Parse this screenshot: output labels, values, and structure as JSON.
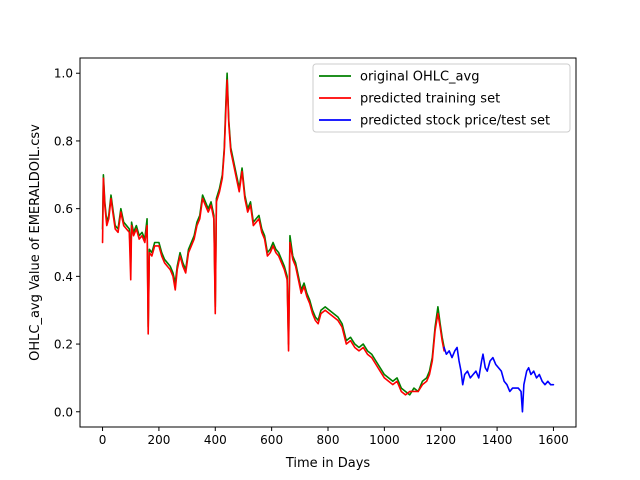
{
  "chart_data": {
    "type": "line",
    "title": "",
    "xlabel": "Time in Days",
    "ylabel": "OHLC_avg Value of EMERALDOIL.csv",
    "xlim": [
      -80,
      1680
    ],
    "ylim": [
      -0.045,
      1.045
    ],
    "xticks": [
      0,
      200,
      400,
      600,
      800,
      1000,
      1200,
      1400,
      1600
    ],
    "xtick_labels": [
      "0",
      "200",
      "400",
      "600",
      "800",
      "1000",
      "1200",
      "1400",
      "1600"
    ],
    "yticks": [
      0.0,
      0.2,
      0.4,
      0.6,
      0.8,
      1.0
    ],
    "ytick_labels": [
      "0.0",
      "0.2",
      "0.4",
      "0.6",
      "0.8",
      "1.0"
    ],
    "grid": false,
    "legend_position": "top-right",
    "series": [
      {
        "name": "original OHLC_avg",
        "color": "#008000",
        "points": [
          [
            0,
            0.54
          ],
          [
            3,
            0.7
          ],
          [
            8,
            0.62
          ],
          [
            15,
            0.56
          ],
          [
            22,
            0.58
          ],
          [
            30,
            0.64
          ],
          [
            38,
            0.59
          ],
          [
            45,
            0.55
          ],
          [
            55,
            0.54
          ],
          [
            65,
            0.6
          ],
          [
            75,
            0.56
          ],
          [
            85,
            0.55
          ],
          [
            95,
            0.54
          ],
          [
            100,
            0.44
          ],
          [
            103,
            0.56
          ],
          [
            110,
            0.53
          ],
          [
            120,
            0.55
          ],
          [
            130,
            0.52
          ],
          [
            140,
            0.53
          ],
          [
            150,
            0.51
          ],
          [
            158,
            0.57
          ],
          [
            162,
            0.25
          ],
          [
            166,
            0.48
          ],
          [
            175,
            0.47
          ],
          [
            185,
            0.5
          ],
          [
            200,
            0.5
          ],
          [
            210,
            0.47
          ],
          [
            220,
            0.45
          ],
          [
            230,
            0.44
          ],
          [
            240,
            0.43
          ],
          [
            250,
            0.41
          ],
          [
            258,
            0.38
          ],
          [
            265,
            0.43
          ],
          [
            275,
            0.47
          ],
          [
            285,
            0.44
          ],
          [
            295,
            0.42
          ],
          [
            305,
            0.48
          ],
          [
            315,
            0.5
          ],
          [
            325,
            0.52
          ],
          [
            335,
            0.56
          ],
          [
            345,
            0.58
          ],
          [
            355,
            0.64
          ],
          [
            365,
            0.62
          ],
          [
            375,
            0.6
          ],
          [
            385,
            0.62
          ],
          [
            395,
            0.58
          ],
          [
            400,
            0.31
          ],
          [
            404,
            0.63
          ],
          [
            415,
            0.66
          ],
          [
            425,
            0.7
          ],
          [
            432,
            0.78
          ],
          [
            438,
            0.92
          ],
          [
            442,
            1.0
          ],
          [
            448,
            0.86
          ],
          [
            455,
            0.78
          ],
          [
            465,
            0.74
          ],
          [
            475,
            0.7
          ],
          [
            485,
            0.66
          ],
          [
            495,
            0.72
          ],
          [
            505,
            0.64
          ],
          [
            515,
            0.6
          ],
          [
            525,
            0.62
          ],
          [
            535,
            0.56
          ],
          [
            545,
            0.57
          ],
          [
            555,
            0.58
          ],
          [
            565,
            0.54
          ],
          [
            575,
            0.52
          ],
          [
            585,
            0.47
          ],
          [
            595,
            0.48
          ],
          [
            605,
            0.5
          ],
          [
            615,
            0.48
          ],
          [
            625,
            0.47
          ],
          [
            635,
            0.45
          ],
          [
            645,
            0.43
          ],
          [
            655,
            0.4
          ],
          [
            660,
            0.2
          ],
          [
            665,
            0.52
          ],
          [
            675,
            0.46
          ],
          [
            685,
            0.44
          ],
          [
            695,
            0.4
          ],
          [
            705,
            0.36
          ],
          [
            715,
            0.38
          ],
          [
            725,
            0.35
          ],
          [
            735,
            0.33
          ],
          [
            745,
            0.3
          ],
          [
            755,
            0.28
          ],
          [
            765,
            0.27
          ],
          [
            775,
            0.3
          ],
          [
            790,
            0.31
          ],
          [
            805,
            0.3
          ],
          [
            820,
            0.29
          ],
          [
            835,
            0.28
          ],
          [
            850,
            0.26
          ],
          [
            865,
            0.21
          ],
          [
            880,
            0.22
          ],
          [
            895,
            0.2
          ],
          [
            910,
            0.19
          ],
          [
            925,
            0.2
          ],
          [
            940,
            0.18
          ],
          [
            955,
            0.17
          ],
          [
            970,
            0.15
          ],
          [
            985,
            0.13
          ],
          [
            1000,
            0.11
          ],
          [
            1015,
            0.1
          ],
          [
            1030,
            0.09
          ],
          [
            1045,
            0.1
          ],
          [
            1060,
            0.07
          ],
          [
            1075,
            0.06
          ],
          [
            1090,
            0.05
          ],
          [
            1105,
            0.07
          ],
          [
            1120,
            0.06
          ],
          [
            1135,
            0.09
          ],
          [
            1150,
            0.1
          ],
          [
            1160,
            0.12
          ],
          [
            1170,
            0.16
          ],
          [
            1180,
            0.25
          ],
          [
            1190,
            0.31
          ],
          [
            1198,
            0.26
          ],
          [
            1205,
            0.22
          ],
          [
            1212,
            0.19
          ]
        ]
      },
      {
        "name": "predicted training set",
        "color": "#ff0000",
        "points": [
          [
            0,
            0.5
          ],
          [
            3,
            0.69
          ],
          [
            8,
            0.61
          ],
          [
            15,
            0.55
          ],
          [
            22,
            0.57
          ],
          [
            30,
            0.63
          ],
          [
            38,
            0.58
          ],
          [
            45,
            0.54
          ],
          [
            55,
            0.53
          ],
          [
            65,
            0.59
          ],
          [
            75,
            0.55
          ],
          [
            85,
            0.54
          ],
          [
            95,
            0.53
          ],
          [
            100,
            0.39
          ],
          [
            103,
            0.55
          ],
          [
            110,
            0.52
          ],
          [
            120,
            0.54
          ],
          [
            130,
            0.51
          ],
          [
            140,
            0.52
          ],
          [
            150,
            0.5
          ],
          [
            158,
            0.55
          ],
          [
            162,
            0.23
          ],
          [
            166,
            0.47
          ],
          [
            175,
            0.46
          ],
          [
            185,
            0.49
          ],
          [
            200,
            0.49
          ],
          [
            210,
            0.46
          ],
          [
            220,
            0.44
          ],
          [
            230,
            0.43
          ],
          [
            240,
            0.42
          ],
          [
            250,
            0.4
          ],
          [
            258,
            0.36
          ],
          [
            265,
            0.42
          ],
          [
            275,
            0.46
          ],
          [
            285,
            0.43
          ],
          [
            295,
            0.41
          ],
          [
            305,
            0.47
          ],
          [
            315,
            0.49
          ],
          [
            325,
            0.51
          ],
          [
            335,
            0.55
          ],
          [
            345,
            0.57
          ],
          [
            355,
            0.63
          ],
          [
            365,
            0.61
          ],
          [
            375,
            0.59
          ],
          [
            385,
            0.61
          ],
          [
            395,
            0.57
          ],
          [
            400,
            0.29
          ],
          [
            404,
            0.62
          ],
          [
            415,
            0.65
          ],
          [
            425,
            0.69
          ],
          [
            432,
            0.77
          ],
          [
            438,
            0.9
          ],
          [
            442,
            0.98
          ],
          [
            448,
            0.85
          ],
          [
            455,
            0.77
          ],
          [
            465,
            0.73
          ],
          [
            475,
            0.69
          ],
          [
            485,
            0.65
          ],
          [
            495,
            0.71
          ],
          [
            505,
            0.63
          ],
          [
            515,
            0.59
          ],
          [
            525,
            0.61
          ],
          [
            535,
            0.55
          ],
          [
            545,
            0.56
          ],
          [
            555,
            0.57
          ],
          [
            565,
            0.53
          ],
          [
            575,
            0.51
          ],
          [
            585,
            0.46
          ],
          [
            595,
            0.47
          ],
          [
            605,
            0.49
          ],
          [
            615,
            0.47
          ],
          [
            625,
            0.46
          ],
          [
            635,
            0.44
          ],
          [
            645,
            0.42
          ],
          [
            655,
            0.39
          ],
          [
            660,
            0.18
          ],
          [
            665,
            0.5
          ],
          [
            675,
            0.45
          ],
          [
            685,
            0.43
          ],
          [
            695,
            0.39
          ],
          [
            705,
            0.35
          ],
          [
            715,
            0.37
          ],
          [
            725,
            0.34
          ],
          [
            735,
            0.32
          ],
          [
            745,
            0.29
          ],
          [
            755,
            0.27
          ],
          [
            765,
            0.26
          ],
          [
            775,
            0.29
          ],
          [
            790,
            0.3
          ],
          [
            805,
            0.29
          ],
          [
            820,
            0.28
          ],
          [
            835,
            0.27
          ],
          [
            850,
            0.25
          ],
          [
            865,
            0.2
          ],
          [
            880,
            0.21
          ],
          [
            895,
            0.19
          ],
          [
            910,
            0.18
          ],
          [
            925,
            0.19
          ],
          [
            940,
            0.17
          ],
          [
            955,
            0.16
          ],
          [
            970,
            0.14
          ],
          [
            985,
            0.12
          ],
          [
            1000,
            0.1
          ],
          [
            1015,
            0.09
          ],
          [
            1030,
            0.08
          ],
          [
            1045,
            0.09
          ],
          [
            1060,
            0.06
          ],
          [
            1075,
            0.05
          ],
          [
            1090,
            0.06
          ],
          [
            1105,
            0.06
          ],
          [
            1120,
            0.06
          ],
          [
            1135,
            0.08
          ],
          [
            1150,
            0.09
          ],
          [
            1160,
            0.11
          ],
          [
            1170,
            0.15
          ],
          [
            1180,
            0.24
          ],
          [
            1190,
            0.29
          ],
          [
            1198,
            0.25
          ],
          [
            1205,
            0.21
          ],
          [
            1212,
            0.18
          ]
        ]
      },
      {
        "name": "predicted stock price/test set",
        "color": "#0000ff",
        "points": [
          [
            1212,
            0.19
          ],
          [
            1220,
            0.17
          ],
          [
            1230,
            0.18
          ],
          [
            1240,
            0.16
          ],
          [
            1250,
            0.18
          ],
          [
            1258,
            0.19
          ],
          [
            1265,
            0.15
          ],
          [
            1272,
            0.12
          ],
          [
            1278,
            0.08
          ],
          [
            1285,
            0.11
          ],
          [
            1295,
            0.12
          ],
          [
            1305,
            0.1
          ],
          [
            1315,
            0.11
          ],
          [
            1325,
            0.12
          ],
          [
            1335,
            0.1
          ],
          [
            1345,
            0.15
          ],
          [
            1350,
            0.17
          ],
          [
            1358,
            0.13
          ],
          [
            1365,
            0.12
          ],
          [
            1375,
            0.15
          ],
          [
            1385,
            0.16
          ],
          [
            1395,
            0.14
          ],
          [
            1405,
            0.13
          ],
          [
            1415,
            0.12
          ],
          [
            1425,
            0.09
          ],
          [
            1435,
            0.08
          ],
          [
            1445,
            0.06
          ],
          [
            1455,
            0.07
          ],
          [
            1465,
            0.07
          ],
          [
            1475,
            0.07
          ],
          [
            1485,
            0.06
          ],
          [
            1490,
            0.0
          ],
          [
            1495,
            0.08
          ],
          [
            1505,
            0.12
          ],
          [
            1512,
            0.13
          ],
          [
            1520,
            0.11
          ],
          [
            1530,
            0.12
          ],
          [
            1540,
            0.1
          ],
          [
            1550,
            0.11
          ],
          [
            1560,
            0.09
          ],
          [
            1570,
            0.08
          ],
          [
            1580,
            0.09
          ],
          [
            1590,
            0.08
          ],
          [
            1600,
            0.08
          ]
        ]
      }
    ]
  }
}
